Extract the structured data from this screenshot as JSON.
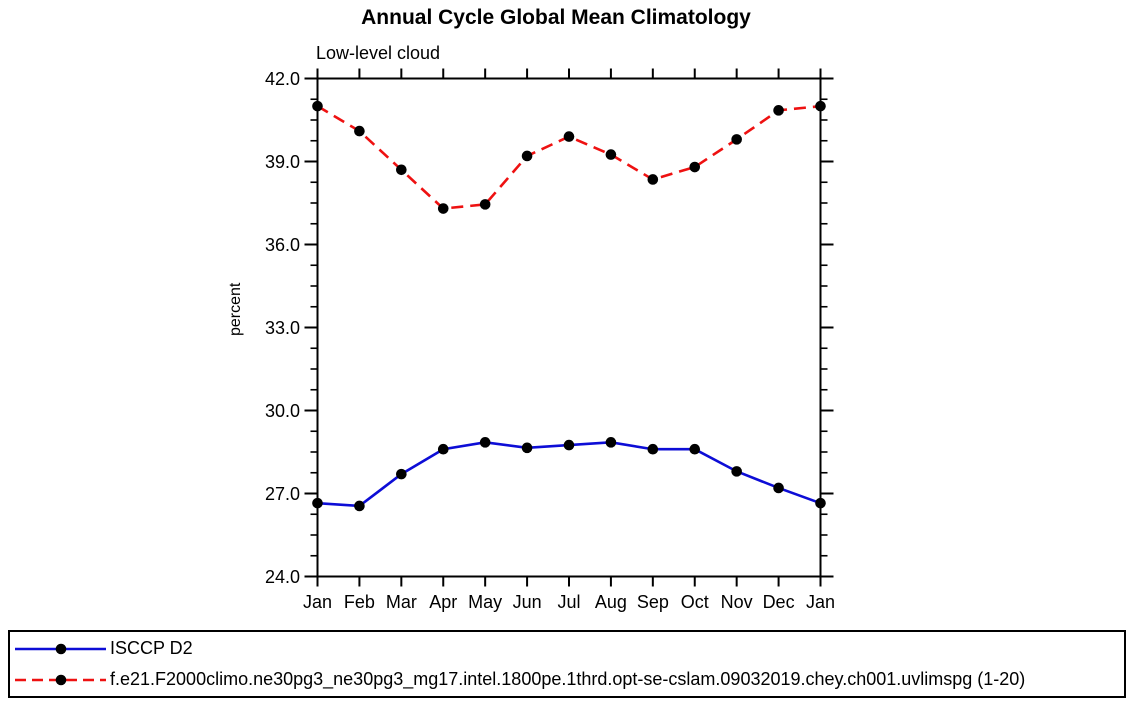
{
  "page": {
    "background": "#ffffff",
    "axis_color": "#000000"
  },
  "chart_data": {
    "type": "line",
    "title": "Annual Cycle Global Mean Climatology",
    "subtitle": "Low-level cloud",
    "ylabel": "percent",
    "xlabel": "",
    "categories": [
      "Jan",
      "Feb",
      "Mar",
      "Apr",
      "May",
      "Jun",
      "Jul",
      "Aug",
      "Sep",
      "Oct",
      "Nov",
      "Dec",
      "Jan"
    ],
    "ylim": [
      24.0,
      42.0
    ],
    "ytick_step": 3.0,
    "yminor_step": 0.75,
    "ytick_labels": [
      "42.0",
      "39.0",
      "36.0",
      "33.0",
      "30.0",
      "27.0",
      "24.0"
    ],
    "grid": false,
    "legend_position": "bottom-full-width-box",
    "marker": "filled-circle",
    "marker_color": "#000000",
    "series": [
      {
        "name": "ISCCP D2",
        "color": "#0d0dd6",
        "line_style": "solid",
        "values": [
          26.65,
          26.55,
          27.7,
          28.6,
          28.85,
          28.65,
          28.75,
          28.85,
          28.6,
          28.6,
          27.8,
          27.2,
          26.65
        ]
      },
      {
        "name": "f.e21.F2000climo.ne30pg3_ne30pg3_mg17.intel.1800pe.1thrd.opt-se-cslam.09032019.chey.ch001.uvlimspg (1-20)",
        "color": "#ee1111",
        "line_style": "dashed",
        "values": [
          41.0,
          40.1,
          38.7,
          37.3,
          37.45,
          39.2,
          39.9,
          39.25,
          38.35,
          38.8,
          39.8,
          40.85,
          41.0
        ]
      }
    ]
  }
}
